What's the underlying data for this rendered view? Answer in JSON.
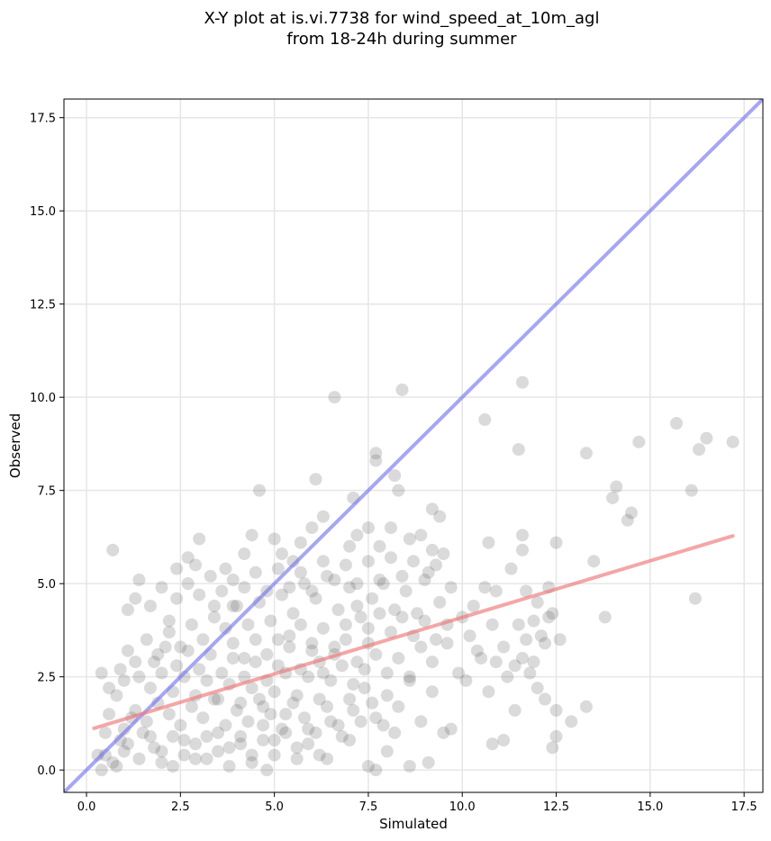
{
  "chart_data": {
    "type": "scatter",
    "title_lines": [
      "X-Y plot at is.vi.7738 for wind_speed_at_10m_agl",
      "from 18-24h during summer"
    ],
    "xlabel": "Simulated",
    "ylabel": "Observed",
    "xlim": [
      -0.6,
      18.0
    ],
    "ylim": [
      -0.6,
      18.0
    ],
    "x_ticks": [
      "0.0",
      "2.5",
      "5.0",
      "7.5",
      "10.0",
      "12.5",
      "15.0",
      "17.5"
    ],
    "y_ticks": [
      "0.0",
      "2.5",
      "5.0",
      "7.5",
      "10.0",
      "12.5",
      "15.0",
      "17.5"
    ],
    "grid": true,
    "colors": {
      "points": "#555555",
      "identity_line": "#7777ee",
      "fit_line": "#ee7777"
    },
    "points": [
      [
        0.7,
        5.9
      ],
      [
        1.4,
        5.1
      ],
      [
        1.3,
        4.6
      ],
      [
        1.1,
        4.3
      ],
      [
        1.7,
        4.4
      ],
      [
        2.2,
        4.0
      ],
      [
        2.4,
        5.4
      ],
      [
        2.7,
        5.7
      ],
      [
        3.0,
        6.2
      ],
      [
        2.9,
        5.5
      ],
      [
        3.4,
        4.4
      ],
      [
        3.7,
        5.4
      ],
      [
        3.9,
        5.1
      ],
      [
        4.2,
        5.8
      ],
      [
        4.4,
        6.3
      ],
      [
        4.6,
        7.5
      ],
      [
        5.0,
        6.2
      ],
      [
        5.2,
        5.8
      ],
      [
        5.5,
        5.6
      ],
      [
        5.7,
        6.1
      ],
      [
        6.0,
        6.5
      ],
      [
        6.1,
        7.8
      ],
      [
        6.3,
        6.8
      ],
      [
        6.6,
        10.0
      ],
      [
        7.0,
        6.0
      ],
      [
        7.2,
        6.3
      ],
      [
        7.1,
        7.3
      ],
      [
        7.5,
        6.5
      ],
      [
        7.8,
        6.0
      ],
      [
        7.7,
        8.5
      ],
      [
        7.7,
        8.3
      ],
      [
        8.2,
        7.9
      ],
      [
        8.3,
        7.5
      ],
      [
        8.4,
        10.2
      ],
      [
        8.1,
        6.5
      ],
      [
        8.6,
        6.2
      ],
      [
        8.9,
        6.3
      ],
      [
        9.2,
        5.9
      ],
      [
        9.2,
        7.0
      ],
      [
        9.4,
        6.8
      ],
      [
        9.5,
        5.8
      ],
      [
        10.6,
        9.4
      ],
      [
        10.7,
        6.1
      ],
      [
        11.6,
        10.4
      ],
      [
        11.5,
        8.6
      ],
      [
        11.6,
        6.3
      ],
      [
        11.6,
        5.9
      ],
      [
        12.5,
        6.1
      ],
      [
        12.3,
        4.9
      ],
      [
        13.3,
        8.5
      ],
      [
        13.5,
        5.6
      ],
      [
        13.8,
        4.1
      ],
      [
        14.0,
        7.3
      ],
      [
        14.1,
        7.6
      ],
      [
        14.4,
        6.7
      ],
      [
        14.5,
        6.9
      ],
      [
        14.7,
        8.8
      ],
      [
        15.7,
        9.3
      ],
      [
        16.1,
        7.5
      ],
      [
        16.3,
        8.6
      ],
      [
        16.5,
        8.9
      ],
      [
        17.2,
        8.8
      ],
      [
        16.2,
        4.6
      ],
      [
        13.3,
        1.7
      ],
      [
        12.4,
        0.6
      ],
      [
        12.5,
        0.9
      ],
      [
        12.9,
        1.3
      ],
      [
        11.1,
        0.8
      ],
      [
        10.8,
        0.7
      ],
      [
        9.7,
        1.1
      ],
      [
        9.1,
        0.2
      ],
      [
        8.6,
        0.1
      ],
      [
        7.7,
        0.0
      ],
      [
        7.5,
        0.1
      ],
      [
        8.0,
        0.5
      ],
      [
        8.2,
        1.0
      ],
      [
        7.0,
        0.8
      ],
      [
        6.4,
        0.3
      ],
      [
        4.8,
        0.0
      ],
      [
        0.3,
        0.4
      ],
      [
        0.4,
        0.0
      ],
      [
        0.7,
        0.2
      ],
      [
        1.0,
        0.5
      ],
      [
        0.9,
        0.8
      ],
      [
        0.5,
        1.0
      ],
      [
        0.4,
        2.6
      ],
      [
        0.6,
        2.2
      ],
      [
        0.8,
        2.0
      ],
      [
        1.0,
        2.4
      ],
      [
        0.6,
        1.5
      ],
      [
        1.2,
        1.4
      ],
      [
        1.5,
        1.0
      ],
      [
        1.8,
        0.6
      ],
      [
        2.0,
        0.2
      ],
      [
        2.3,
        0.9
      ],
      [
        2.6,
        0.4
      ],
      [
        2.9,
        0.7
      ],
      [
        3.2,
        0.3
      ],
      [
        3.5,
        1.0
      ],
      [
        3.8,
        0.6
      ],
      [
        4.1,
        0.9
      ],
      [
        4.4,
        0.4
      ],
      [
        4.7,
        1.2
      ],
      [
        5.0,
        0.8
      ],
      [
        5.3,
        1.5
      ],
      [
        5.6,
        0.6
      ],
      [
        5.9,
        1.1
      ],
      [
        6.2,
        1.9
      ],
      [
        6.5,
        1.3
      ],
      [
        6.8,
        0.9
      ],
      [
        7.1,
        1.6
      ],
      [
        7.4,
        2.2
      ],
      [
        7.7,
        1.4
      ],
      [
        8.0,
        2.0
      ],
      [
        8.3,
        1.7
      ],
      [
        8.6,
        2.4
      ],
      [
        8.9,
        1.3
      ],
      [
        9.2,
        2.1
      ],
      [
        9.5,
        1.0
      ],
      [
        9.9,
        2.6
      ],
      [
        10.1,
        2.4
      ],
      [
        10.4,
        3.2
      ],
      [
        10.7,
        2.1
      ],
      [
        10.9,
        2.9
      ],
      [
        11.2,
        2.5
      ],
      [
        11.4,
        1.6
      ],
      [
        11.6,
        3.0
      ],
      [
        11.8,
        2.6
      ],
      [
        12.0,
        2.2
      ],
      [
        12.2,
        1.9
      ],
      [
        12.5,
        1.6
      ],
      [
        12.6,
        3.5
      ],
      [
        12.2,
        3.4
      ],
      [
        11.9,
        4.0
      ],
      [
        12.1,
        3.6
      ],
      [
        12.3,
        4.1
      ],
      [
        11.5,
        3.9
      ],
      [
        11.3,
        5.4
      ],
      [
        10.9,
        4.8
      ],
      [
        10.6,
        4.9
      ],
      [
        10.3,
        4.4
      ],
      [
        10.0,
        4.1
      ],
      [
        9.7,
        4.9
      ],
      [
        9.4,
        4.5
      ],
      [
        9.1,
        5.3
      ],
      [
        8.8,
        4.2
      ],
      [
        8.5,
        4.8
      ],
      [
        8.2,
        4.3
      ],
      [
        7.9,
        5.0
      ],
      [
        7.6,
        4.6
      ],
      [
        7.3,
        4.1
      ],
      [
        7.0,
        4.9
      ],
      [
        6.7,
        4.3
      ],
      [
        6.4,
        5.2
      ],
      [
        6.1,
        4.6
      ],
      [
        5.8,
        5.0
      ],
      [
        5.5,
        4.2
      ],
      [
        5.2,
        4.7
      ],
      [
        4.9,
        4.0
      ],
      [
        4.6,
        4.5
      ],
      [
        4.3,
        3.9
      ],
      [
        4.0,
        4.4
      ],
      [
        3.7,
        3.8
      ],
      [
        3.4,
        4.1
      ],
      [
        3.1,
        3.5
      ],
      [
        2.8,
        3.9
      ],
      [
        2.5,
        3.3
      ],
      [
        2.2,
        3.7
      ],
      [
        1.9,
        3.1
      ],
      [
        1.6,
        3.5
      ],
      [
        1.3,
        2.9
      ],
      [
        1.1,
        3.2
      ],
      [
        0.9,
        2.7
      ],
      [
        1.4,
        2.5
      ],
      [
        1.7,
        2.2
      ],
      [
        2.0,
        2.6
      ],
      [
        2.3,
        2.1
      ],
      [
        2.6,
        2.5
      ],
      [
        2.9,
        2.0
      ],
      [
        3.2,
        2.4
      ],
      [
        3.5,
        1.9
      ],
      [
        3.8,
        2.3
      ],
      [
        4.1,
        1.8
      ],
      [
        4.4,
        2.2
      ],
      [
        4.7,
        1.7
      ],
      [
        5.0,
        2.1
      ],
      [
        5.3,
        2.6
      ],
      [
        5.6,
        2.0
      ],
      [
        5.9,
        2.5
      ],
      [
        6.2,
        2.9
      ],
      [
        6.5,
        2.4
      ],
      [
        6.8,
        2.8
      ],
      [
        7.1,
        2.3
      ],
      [
        7.4,
        2.7
      ],
      [
        7.7,
        3.1
      ],
      [
        8.0,
        2.6
      ],
      [
        8.3,
        3.0
      ],
      [
        8.6,
        2.5
      ],
      [
        8.9,
        3.3
      ],
      [
        9.2,
        2.9
      ],
      [
        9.6,
        3.4
      ],
      [
        1.0,
        1.1
      ],
      [
        1.3,
        1.6
      ],
      [
        1.6,
        1.3
      ],
      [
        1.9,
        1.8
      ],
      [
        2.2,
        1.5
      ],
      [
        2.5,
        1.2
      ],
      [
        2.8,
        1.7
      ],
      [
        3.1,
        1.4
      ],
      [
        3.4,
        1.9
      ],
      [
        3.7,
        1.2
      ],
      [
        4.0,
        1.6
      ],
      [
        4.3,
        1.3
      ],
      [
        4.6,
        1.9
      ],
      [
        4.9,
        1.5
      ],
      [
        5.2,
        1.1
      ],
      [
        5.5,
        1.8
      ],
      [
        5.8,
        1.4
      ],
      [
        6.1,
        1.0
      ],
      [
        6.4,
        1.7
      ],
      [
        6.7,
        1.2
      ],
      [
        7.0,
        1.9
      ],
      [
        7.3,
        1.3
      ],
      [
        7.6,
        1.8
      ],
      [
        7.9,
        1.2
      ],
      [
        2.0,
        4.9
      ],
      [
        2.4,
        4.6
      ],
      [
        2.7,
        5.0
      ],
      [
        3.0,
        4.7
      ],
      [
        3.3,
        5.2
      ],
      [
        3.6,
        4.8
      ],
      [
        3.9,
        4.4
      ],
      [
        4.2,
        4.9
      ],
      [
        4.5,
        5.3
      ],
      [
        4.8,
        4.8
      ],
      [
        5.1,
        5.4
      ],
      [
        5.4,
        4.9
      ],
      [
        5.7,
        5.3
      ],
      [
        6.0,
        4.8
      ],
      [
        6.3,
        5.6
      ],
      [
        6.6,
        5.1
      ],
      [
        6.9,
        5.5
      ],
      [
        7.2,
        5.0
      ],
      [
        7.5,
        5.6
      ],
      [
        7.8,
        5.1
      ],
      [
        8.1,
        5.7
      ],
      [
        8.4,
        5.2
      ],
      [
        8.7,
        5.6
      ],
      [
        9.0,
        5.1
      ],
      [
        9.3,
        5.5
      ],
      [
        1.8,
        2.9
      ],
      [
        2.1,
        3.3
      ],
      [
        2.4,
        2.8
      ],
      [
        2.7,
        3.2
      ],
      [
        3.0,
        2.7
      ],
      [
        3.3,
        3.1
      ],
      [
        3.6,
        2.6
      ],
      [
        3.9,
        3.0
      ],
      [
        4.2,
        2.5
      ],
      [
        4.5,
        2.9
      ],
      [
        4.8,
        2.4
      ],
      [
        5.1,
        2.8
      ],
      [
        5.4,
        3.3
      ],
      [
        5.7,
        2.7
      ],
      [
        6.0,
        3.2
      ],
      [
        6.3,
        2.6
      ],
      [
        6.6,
        3.1
      ],
      [
        6.9,
        3.5
      ],
      [
        7.2,
        2.9
      ],
      [
        7.5,
        3.4
      ],
      [
        0.5,
        0.4
      ],
      [
        0.8,
        0.1
      ],
      [
        1.1,
        0.7
      ],
      [
        1.4,
        0.3
      ],
      [
        1.7,
        0.9
      ],
      [
        2.0,
        0.5
      ],
      [
        2.3,
        0.1
      ],
      [
        2.6,
        0.8
      ],
      [
        2.9,
        0.3
      ],
      [
        3.2,
        0.9
      ],
      [
        3.5,
        0.5
      ],
      [
        3.8,
        0.1
      ],
      [
        4.1,
        0.7
      ],
      [
        4.4,
        0.2
      ],
      [
        4.7,
        0.8
      ],
      [
        5.0,
        0.4
      ],
      [
        5.3,
        1.0
      ],
      [
        5.6,
        0.3
      ],
      [
        5.9,
        0.7
      ],
      [
        6.2,
        0.4
      ],
      [
        6.9,
        3.9
      ],
      [
        7.2,
        4.4
      ],
      [
        7.5,
        3.8
      ],
      [
        7.8,
        4.2
      ],
      [
        8.1,
        3.7
      ],
      [
        8.4,
        4.1
      ],
      [
        8.7,
        3.6
      ],
      [
        9.0,
        4.0
      ],
      [
        9.3,
        3.5
      ],
      [
        9.6,
        3.9
      ],
      [
        5.4,
        3.6
      ],
      [
        5.7,
        3.9
      ],
      [
        6.0,
        3.4
      ],
      [
        6.3,
        3.8
      ],
      [
        6.6,
        3.3
      ],
      [
        5.1,
        3.5
      ],
      [
        4.8,
        3.1
      ],
      [
        4.5,
        3.5
      ],
      [
        4.2,
        3.0
      ],
      [
        3.9,
        3.4
      ],
      [
        10.2,
        3.6
      ],
      [
        10.5,
        3.0
      ],
      [
        10.8,
        3.9
      ],
      [
        11.1,
        3.3
      ],
      [
        11.4,
        2.8
      ],
      [
        11.7,
        3.5
      ],
      [
        11.9,
        2.9
      ],
      [
        12.4,
        4.2
      ],
      [
        12.0,
        4.5
      ],
      [
        11.7,
        4.8
      ]
    ],
    "identity_line": {
      "x": [
        -0.6,
        18.0
      ],
      "y": [
        -0.6,
        18.0
      ]
    },
    "fit_line": {
      "x": [
        0.2,
        17.2
      ],
      "y": [
        1.12,
        6.28
      ]
    }
  }
}
